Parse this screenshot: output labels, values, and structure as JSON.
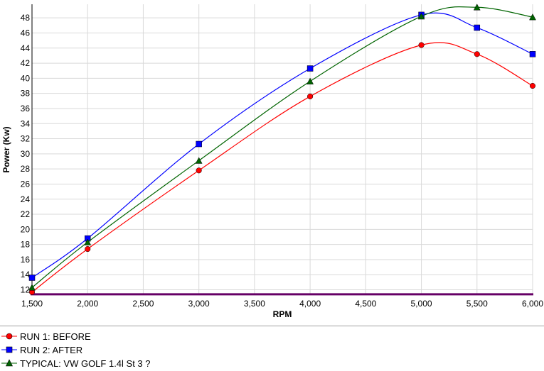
{
  "chart_data": {
    "type": "line",
    "xlabel": "RPM",
    "ylabel": "Power (Kw)",
    "x_ticks": [
      "1,500",
      "2,000",
      "2,500",
      "3,000",
      "3,500",
      "4,000",
      "4,500",
      "5,000",
      "5,500",
      "6,000"
    ],
    "y_ticks": [
      "12",
      "14",
      "16",
      "18",
      "20",
      "22",
      "24",
      "26",
      "28",
      "30",
      "32",
      "34",
      "36",
      "38",
      "40",
      "42",
      "44",
      "46",
      "48"
    ],
    "xlim": [
      1500,
      6000
    ],
    "ylim": [
      11.3,
      49.8
    ],
    "grid": true,
    "legend_position": "bottom",
    "series": [
      {
        "name": "RUN 1: BEFORE",
        "color": "#ff0000",
        "marker": "circle",
        "x": [
          1500,
          2000,
          3000,
          4000,
          5000,
          5500,
          6000
        ],
        "y": [
          11.7,
          17.4,
          27.8,
          37.6,
          44.4,
          43.2,
          39.0
        ]
      },
      {
        "name": "RUN 2: AFTER",
        "color": "#0000ff",
        "marker": "square",
        "x": [
          1500,
          2000,
          3000,
          4000,
          5000,
          5500,
          6000
        ],
        "y": [
          13.6,
          18.8,
          31.3,
          41.3,
          48.4,
          46.7,
          43.2
        ]
      },
      {
        "name": "TYPICAL: VW GOLF 1.4l St 3 ?",
        "color": "#006400",
        "marker": "triangle",
        "x": [
          1500,
          2000,
          3000,
          4000,
          5000,
          5500,
          6000
        ],
        "y": [
          12.3,
          18.3,
          29.1,
          39.6,
          48.2,
          49.4,
          48.1
        ]
      }
    ],
    "baseline": {
      "y": 11.4,
      "color": "#660066"
    }
  }
}
